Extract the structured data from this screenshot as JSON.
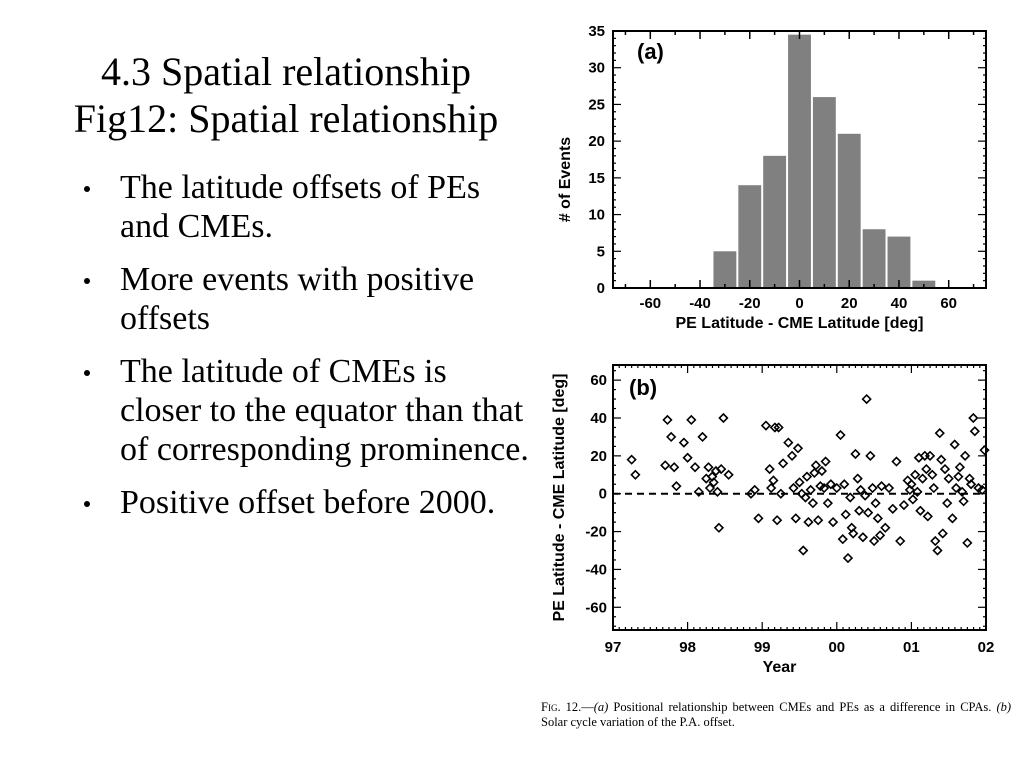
{
  "slide": {
    "title_line1": "4.3 Spatial relationship",
    "title_line2": "Fig12: Spatial relationship",
    "bullets": [
      "The latitude offsets of PEs and CMEs.",
      "More events with positive offsets",
      "The latitude of CMEs is closer to the equator than that of corresponding prominence.",
      "Positive offset before 2000."
    ]
  },
  "figure": {
    "caption_label": "Fig. 12.",
    "caption_a_marker": "(a)",
    "caption_a_text": "Positional relationship between CMEs and PEs as a difference in CPAs.",
    "caption_b_marker": "(b)",
    "caption_b_text": "Solar cycle variation of the P.A. offset."
  },
  "chart_data": [
    {
      "type": "bar",
      "panel_label": "(a)",
      "xlabel": "PE Latitude - CME Latitude [deg]",
      "ylabel": "# of Events",
      "bin_width": 10,
      "x_bin_centers": [
        -30,
        -20,
        -10,
        0,
        10,
        20,
        30,
        40,
        50
      ],
      "values": [
        5,
        14,
        18,
        34.5,
        26,
        21,
        8,
        7,
        1
      ],
      "xlim": [
        -75,
        75
      ],
      "ylim": [
        0,
        35
      ],
      "xticks": [
        -60,
        -40,
        -20,
        0,
        20,
        40,
        60
      ],
      "yticks": [
        0,
        5,
        10,
        15,
        20,
        25,
        30,
        35
      ],
      "bar_color": "#808080"
    },
    {
      "type": "scatter",
      "panel_label": "(b)",
      "xlabel": "Year",
      "ylabel": "PE Latitude - CME Latitude [deg]",
      "marker": "diamond",
      "xlim": [
        1997,
        2002
      ],
      "ylim": [
        -72,
        68
      ],
      "xticks": [
        1997,
        1998,
        1999,
        2000,
        2001,
        2002
      ],
      "xtick_labels": [
        "97",
        "98",
        "99",
        "00",
        "01",
        "02"
      ],
      "yticks": [
        -60,
        -40,
        -20,
        0,
        20,
        40,
        60
      ],
      "reference_line": 0,
      "points": [
        [
          1997.25,
          18
        ],
        [
          1997.3,
          10
        ],
        [
          1997.7,
          15
        ],
        [
          1997.73,
          39
        ],
        [
          1997.78,
          30
        ],
        [
          1997.82,
          14
        ],
        [
          1997.85,
          4
        ],
        [
          1997.95,
          27
        ],
        [
          1998.0,
          19
        ],
        [
          1998.05,
          39
        ],
        [
          1998.1,
          14
        ],
        [
          1998.15,
          1
        ],
        [
          1998.2,
          30
        ],
        [
          1998.25,
          8
        ],
        [
          1998.28,
          14
        ],
        [
          1998.3,
          3
        ],
        [
          1998.33,
          9
        ],
        [
          1998.35,
          6
        ],
        [
          1998.38,
          12
        ],
        [
          1998.4,
          1
        ],
        [
          1998.42,
          -18
        ],
        [
          1998.45,
          13
        ],
        [
          1998.48,
          40
        ],
        [
          1998.55,
          10
        ],
        [
          1998.85,
          0
        ],
        [
          1998.9,
          2
        ],
        [
          1998.95,
          -13
        ],
        [
          1999.05,
          36
        ],
        [
          1999.1,
          13
        ],
        [
          1999.12,
          3
        ],
        [
          1999.15,
          7
        ],
        [
          1999.17,
          35
        ],
        [
          1999.2,
          -14
        ],
        [
          1999.22,
          35
        ],
        [
          1999.25,
          0
        ],
        [
          1999.28,
          16
        ],
        [
          1999.35,
          27
        ],
        [
          1999.4,
          20
        ],
        [
          1999.42,
          3
        ],
        [
          1999.45,
          -13
        ],
        [
          1999.48,
          24
        ],
        [
          1999.5,
          6
        ],
        [
          1999.53,
          0
        ],
        [
          1999.55,
          -30
        ],
        [
          1999.58,
          -2
        ],
        [
          1999.6,
          9
        ],
        [
          1999.62,
          -15
        ],
        [
          1999.65,
          2
        ],
        [
          1999.68,
          -5
        ],
        [
          1999.7,
          11
        ],
        [
          1999.72,
          15
        ],
        [
          1999.75,
          -14
        ],
        [
          1999.78,
          4
        ],
        [
          1999.8,
          12
        ],
        [
          1999.83,
          3
        ],
        [
          1999.85,
          17
        ],
        [
          1999.88,
          -5
        ],
        [
          1999.92,
          5
        ],
        [
          1999.95,
          -15
        ],
        [
          2000.0,
          3
        ],
        [
          2000.05,
          31
        ],
        [
          2000.08,
          -24
        ],
        [
          2000.1,
          5
        ],
        [
          2000.12,
          -11
        ],
        [
          2000.15,
          -34
        ],
        [
          2000.18,
          -2
        ],
        [
          2000.2,
          -18
        ],
        [
          2000.22,
          -21
        ],
        [
          2000.25,
          21
        ],
        [
          2000.28,
          8
        ],
        [
          2000.3,
          -9
        ],
        [
          2000.32,
          2
        ],
        [
          2000.35,
          -23
        ],
        [
          2000.38,
          -1
        ],
        [
          2000.4,
          50
        ],
        [
          2000.42,
          -10
        ],
        [
          2000.45,
          20
        ],
        [
          2000.48,
          3
        ],
        [
          2000.5,
          -25
        ],
        [
          2000.52,
          -5
        ],
        [
          2000.55,
          -13
        ],
        [
          2000.58,
          -22
        ],
        [
          2000.6,
          4
        ],
        [
          2000.65,
          -18
        ],
        [
          2000.7,
          3
        ],
        [
          2000.75,
          -8
        ],
        [
          2000.8,
          17
        ],
        [
          2000.85,
          -25
        ],
        [
          2000.9,
          -6
        ],
        [
          2000.95,
          7
        ],
        [
          2000.98,
          2
        ],
        [
          2001.0,
          5
        ],
        [
          2001.02,
          -3
        ],
        [
          2001.05,
          10
        ],
        [
          2001.08,
          1
        ],
        [
          2001.1,
          19
        ],
        [
          2001.12,
          -9
        ],
        [
          2001.15,
          8
        ],
        [
          2001.18,
          20
        ],
        [
          2001.2,
          13
        ],
        [
          2001.22,
          -12
        ],
        [
          2001.25,
          20
        ],
        [
          2001.28,
          10
        ],
        [
          2001.3,
          3
        ],
        [
          2001.32,
          -25
        ],
        [
          2001.35,
          -30
        ],
        [
          2001.38,
          32
        ],
        [
          2001.4,
          18
        ],
        [
          2001.42,
          -21
        ],
        [
          2001.45,
          13
        ],
        [
          2001.48,
          -5
        ],
        [
          2001.5,
          8
        ],
        [
          2001.55,
          -13
        ],
        [
          2001.58,
          26
        ],
        [
          2001.6,
          3
        ],
        [
          2001.63,
          9
        ],
        [
          2001.65,
          14
        ],
        [
          2001.68,
          1
        ],
        [
          2001.7,
          -4
        ],
        [
          2001.72,
          20
        ],
        [
          2001.75,
          -26
        ],
        [
          2001.78,
          8
        ],
        [
          2001.8,
          5
        ],
        [
          2001.83,
          40
        ],
        [
          2001.85,
          33
        ],
        [
          2001.9,
          3
        ],
        [
          2001.95,
          2
        ],
        [
          2001.98,
          23
        ]
      ]
    }
  ]
}
